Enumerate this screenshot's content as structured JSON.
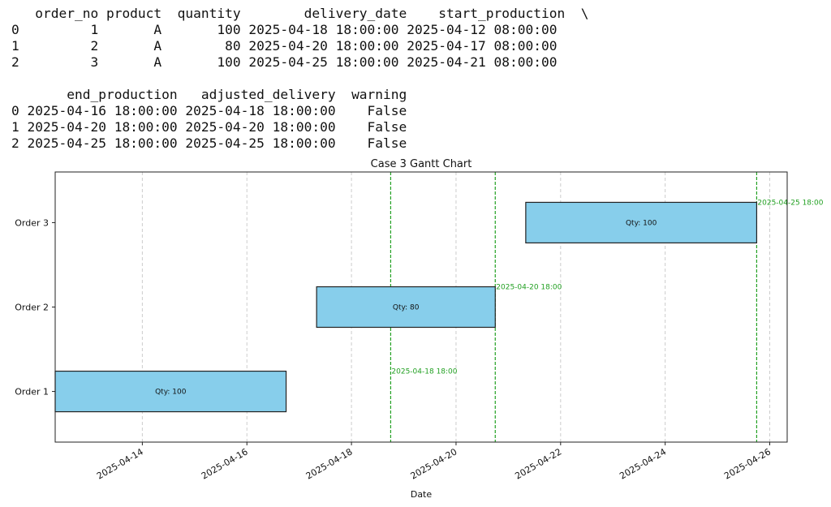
{
  "table_output": {
    "part1_header": "   order_no product  quantity        delivery_date    start_production  \\",
    "part1_rows": [
      "0         1       A       100 2025-04-18 18:00:00 2025-04-12 08:00:00",
      "1         2       A        80 2025-04-20 18:00:00 2025-04-17 08:00:00",
      "2         3       A       100 2025-04-25 18:00:00 2025-04-21 08:00:00"
    ],
    "part2_header": "       end_production   adjusted_delivery  warning",
    "part2_rows": [
      "0 2025-04-16 18:00:00 2025-04-18 18:00:00    False",
      "1 2025-04-20 18:00:00 2025-04-20 18:00:00    False",
      "2 2025-04-25 18:00:00 2025-04-25 18:00:00    False"
    ]
  },
  "chart_data": {
    "type": "gantt",
    "title": "Case 3 Gantt Chart",
    "xlabel": "Date",
    "ylabel": "",
    "xlim": [
      "2025-04-12T08:00",
      "2025-04-26T08:00"
    ],
    "x_ticks": [
      "2025-04-14",
      "2025-04-16",
      "2025-04-18",
      "2025-04-20",
      "2025-04-22",
      "2025-04-24",
      "2025-04-26"
    ],
    "grid": "x-dashed",
    "colors": {
      "bar_fill": "#87CEEB",
      "bar_edge": "#222222",
      "deadline": "#22a022",
      "grid": "#cccccc"
    },
    "tasks": [
      {
        "label": "Order 1",
        "start": "2025-04-12T08:00",
        "end": "2025-04-16T18:00",
        "bar_text": "Qty: 100",
        "deadline": "2025-04-18T18:00",
        "deadline_label": "2025-04-18 18:00"
      },
      {
        "label": "Order 2",
        "start": "2025-04-17T08:00",
        "end": "2025-04-20T18:00",
        "bar_text": "Qty: 80",
        "deadline": "2025-04-20T18:00",
        "deadline_label": "2025-04-20 18:00"
      },
      {
        "label": "Order 3",
        "start": "2025-04-21T08:00",
        "end": "2025-04-25T18:00",
        "bar_text": "Qty: 100",
        "deadline": "2025-04-25T18:00",
        "deadline_label": "2025-04-25 18:00"
      }
    ]
  }
}
